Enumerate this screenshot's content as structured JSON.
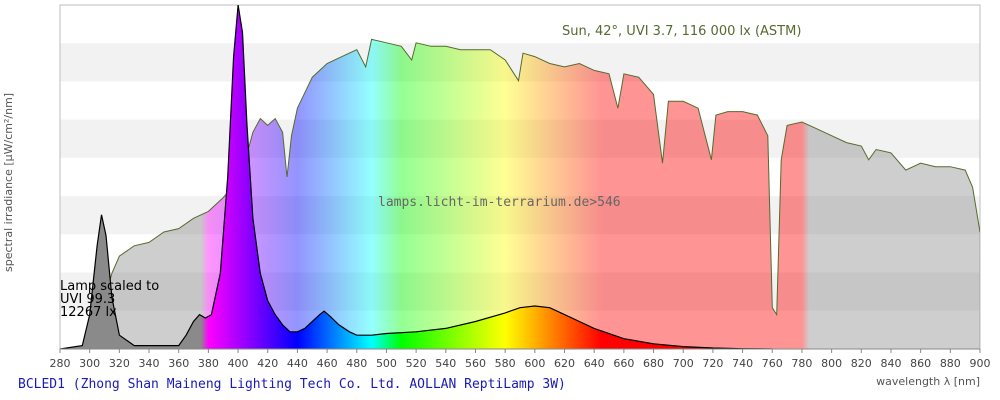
{
  "chart_data": {
    "type": "area",
    "title": "",
    "xlabel": "wavelength λ [nm]",
    "ylabel": "spectral irradiance [µW/cm²/nm]",
    "xlim": [
      280,
      900
    ],
    "x_ticks": [
      "280",
      "300",
      "320",
      "340",
      "360",
      "380",
      "400",
      "420",
      "440",
      "460",
      "480",
      "500",
      "520",
      "540",
      "560",
      "580",
      "600",
      "620",
      "640",
      "660",
      "680",
      "700",
      "720",
      "740",
      "760",
      "780",
      "800",
      "820",
      "840",
      "860",
      "880",
      "900"
    ],
    "grid": true,
    "watermark": "lamps.licht-im-terrarium.de>546",
    "lamp_note": [
      "Lamp scaled to",
      "UVI 99.3",
      "12267 lx"
    ],
    "series": [
      {
        "name": "Sun, 42°, UVI 3.7, 116 000 lx (ASTM)",
        "color": "#556b2f",
        "fill": "spectral",
        "points": [
          [
            280,
            0
          ],
          [
            290,
            0
          ],
          [
            300,
            0.02
          ],
          [
            305,
            0.06
          ],
          [
            310,
            0.14
          ],
          [
            315,
            0.22
          ],
          [
            320,
            0.27
          ],
          [
            330,
            0.3
          ],
          [
            340,
            0.31
          ],
          [
            350,
            0.34
          ],
          [
            360,
            0.35
          ],
          [
            370,
            0.38
          ],
          [
            380,
            0.4
          ],
          [
            390,
            0.44
          ],
          [
            400,
            0.49
          ],
          [
            405,
            0.55
          ],
          [
            410,
            0.63
          ],
          [
            415,
            0.67
          ],
          [
            420,
            0.65
          ],
          [
            425,
            0.67
          ],
          [
            430,
            0.63
          ],
          [
            433,
            0.5
          ],
          [
            436,
            0.62
          ],
          [
            440,
            0.7
          ],
          [
            450,
            0.79
          ],
          [
            460,
            0.83
          ],
          [
            470,
            0.85
          ],
          [
            480,
            0.87
          ],
          [
            486,
            0.82
          ],
          [
            490,
            0.9
          ],
          [
            500,
            0.89
          ],
          [
            510,
            0.88
          ],
          [
            517,
            0.84
          ],
          [
            520,
            0.89
          ],
          [
            530,
            0.88
          ],
          [
            540,
            0.88
          ],
          [
            550,
            0.87
          ],
          [
            560,
            0.87
          ],
          [
            570,
            0.87
          ],
          [
            580,
            0.84
          ],
          [
            589,
            0.78
          ],
          [
            592,
            0.86
          ],
          [
            600,
            0.85
          ],
          [
            610,
            0.83
          ],
          [
            620,
            0.82
          ],
          [
            630,
            0.83
          ],
          [
            640,
            0.81
          ],
          [
            650,
            0.8
          ],
          [
            656,
            0.7
          ],
          [
            660,
            0.8
          ],
          [
            670,
            0.79
          ],
          [
            680,
            0.74
          ],
          [
            686,
            0.54
          ],
          [
            690,
            0.72
          ],
          [
            700,
            0.72
          ],
          [
            710,
            0.7
          ],
          [
            719,
            0.55
          ],
          [
            722,
            0.68
          ],
          [
            730,
            0.69
          ],
          [
            740,
            0.69
          ],
          [
            750,
            0.68
          ],
          [
            757,
            0.62
          ],
          [
            760,
            0.12
          ],
          [
            763,
            0.1
          ],
          [
            766,
            0.55
          ],
          [
            770,
            0.65
          ],
          [
            780,
            0.66
          ],
          [
            790,
            0.64
          ],
          [
            800,
            0.62
          ],
          [
            810,
            0.6
          ],
          [
            820,
            0.59
          ],
          [
            825,
            0.55
          ],
          [
            830,
            0.58
          ],
          [
            840,
            0.57
          ],
          [
            850,
            0.52
          ],
          [
            860,
            0.54
          ],
          [
            870,
            0.53
          ],
          [
            880,
            0.53
          ],
          [
            890,
            0.52
          ],
          [
            895,
            0.47
          ],
          [
            900,
            0.34
          ]
        ]
      },
      {
        "name": "BCLED1 (Zhong Shan Maineng Lighting Tech Co. Ltd. AOLLAN ReptiLamp 3W)",
        "color": "#000000",
        "fill": "spectral",
        "points": [
          [
            280,
            0
          ],
          [
            295,
            0.01
          ],
          [
            300,
            0.1
          ],
          [
            305,
            0.3
          ],
          [
            308,
            0.39
          ],
          [
            311,
            0.33
          ],
          [
            315,
            0.15
          ],
          [
            320,
            0.04
          ],
          [
            330,
            0.01
          ],
          [
            360,
            0.01
          ],
          [
            365,
            0.04
          ],
          [
            370,
            0.08
          ],
          [
            374,
            0.1
          ],
          [
            378,
            0.09
          ],
          [
            382,
            0.1
          ],
          [
            388,
            0.22
          ],
          [
            393,
            0.5
          ],
          [
            397,
            0.85
          ],
          [
            400,
            1.0
          ],
          [
            403,
            0.92
          ],
          [
            406,
            0.65
          ],
          [
            410,
            0.38
          ],
          [
            415,
            0.22
          ],
          [
            420,
            0.14
          ],
          [
            425,
            0.1
          ],
          [
            430,
            0.07
          ],
          [
            435,
            0.05
          ],
          [
            440,
            0.05
          ],
          [
            445,
            0.06
          ],
          [
            450,
            0.08
          ],
          [
            455,
            0.1
          ],
          [
            458,
            0.11
          ],
          [
            462,
            0.095
          ],
          [
            468,
            0.07
          ],
          [
            475,
            0.05
          ],
          [
            480,
            0.04
          ],
          [
            490,
            0.04
          ],
          [
            500,
            0.045
          ],
          [
            520,
            0.05
          ],
          [
            540,
            0.06
          ],
          [
            560,
            0.08
          ],
          [
            580,
            0.105
          ],
          [
            590,
            0.12
          ],
          [
            600,
            0.125
          ],
          [
            610,
            0.12
          ],
          [
            620,
            0.1
          ],
          [
            630,
            0.08
          ],
          [
            640,
            0.06
          ],
          [
            660,
            0.03
          ],
          [
            680,
            0.015
          ],
          [
            700,
            0.007
          ],
          [
            720,
            0.003
          ],
          [
            740,
            0.001
          ],
          [
            760,
            0
          ]
        ]
      }
    ]
  },
  "footer": {
    "title": "BCLED1 (Zhong Shan Maineng Lighting Tech Co. Ltd. AOLLAN ReptiLamp 3W)"
  }
}
